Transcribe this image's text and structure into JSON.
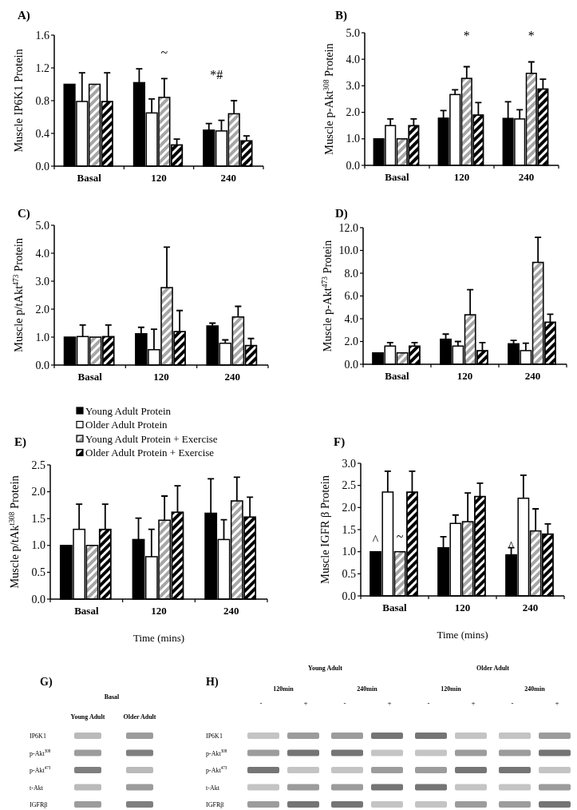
{
  "chart_data": [
    {
      "type": "bar",
      "title": "A)",
      "ylabel": "Muscle IP6K1 Protein",
      "categories": [
        "Basal",
        "120",
        "240"
      ],
      "ylim": [
        0,
        1.6
      ],
      "yticks": [
        {
          "value": 0,
          "label": "0.0"
        },
        {
          "value": 0.4,
          "label": "0.4"
        },
        {
          "value": 0.8,
          "label": "0.8"
        },
        {
          "value": 1.2,
          "label": "1.2"
        },
        {
          "value": 1.6,
          "label": "1.6"
        }
      ],
      "series": [
        {
          "color": "#000000",
          "values": [
            1.0,
            1.02,
            0.44
          ],
          "errors": [
            null,
            0.17,
            0.08
          ]
        },
        {
          "color": "#ffffff",
          "values": [
            0.79,
            0.65,
            0.43
          ],
          "errors": [
            0.35,
            0.17,
            0.13
          ]
        },
        {
          "color": "#a6a6a6",
          "values": [
            1.0,
            0.84,
            0.64
          ],
          "errors": [
            null,
            0.23,
            0.16
          ]
        },
        {
          "color": "#000000",
          "values": [
            0.79,
            0.26,
            0.31
          ],
          "errors": [
            0.35,
            0.07,
            0.06
          ]
        }
      ],
      "annotations": [
        "~",
        "*#"
      ]
    },
    {
      "type": "bar",
      "title": "B)",
      "ylabel": "Muscle p-Akt$^{308}$ Protein",
      "categories": [
        "Basal",
        "120",
        "240"
      ],
      "ylim": [
        0,
        5
      ],
      "yticks": [
        {
          "value": 0,
          "label": "0.0"
        },
        {
          "value": 1,
          "label": "1.0"
        },
        {
          "value": 2,
          "label": "2.0"
        },
        {
          "value": 3,
          "label": "3.0"
        },
        {
          "value": 4,
          "label": "4.0"
        },
        {
          "value": 5,
          "label": "5.0"
        }
      ],
      "series": [
        {
          "color": "#000000",
          "values": [
            1.0,
            1.78,
            1.77
          ],
          "errors": [
            null,
            0.29,
            0.63
          ]
        },
        {
          "color": "#ffffff",
          "values": [
            1.5,
            2.67,
            1.75
          ],
          "errors": [
            0.25,
            0.18,
            0.35
          ]
        },
        {
          "color": "#a6a6a6",
          "values": [
            1.0,
            3.28,
            3.47
          ],
          "errors": [
            null,
            0.44,
            0.43
          ]
        },
        {
          "color": "#000000",
          "values": [
            1.5,
            1.9,
            2.88
          ],
          "errors": [
            0.25,
            0.47,
            0.37
          ]
        }
      ],
      "annotations": [
        "*",
        "*"
      ]
    },
    {
      "type": "bar",
      "title": "C)",
      "ylabel": "Muscle p/tAkt$^{473}$ Protein",
      "categories": [
        "Basal",
        "120",
        "240"
      ],
      "ylim": [
        0,
        5
      ],
      "yticks": [
        {
          "value": 0,
          "label": "0.0"
        },
        {
          "value": 1,
          "label": "1.0"
        },
        {
          "value": 2,
          "label": "2.0"
        },
        {
          "value": 3,
          "label": "3.0"
        },
        {
          "value": 4,
          "label": "4.0"
        },
        {
          "value": 5,
          "label": "5.0"
        }
      ],
      "series": [
        {
          "color": "#000000",
          "values": [
            1.0,
            1.12,
            1.4
          ],
          "errors": [
            null,
            0.23,
            0.1
          ]
        },
        {
          "color": "#ffffff",
          "values": [
            1.02,
            0.55,
            0.78
          ],
          "errors": [
            0.41,
            0.73,
            0.12
          ]
        },
        {
          "color": "#a6a6a6",
          "values": [
            1.0,
            2.77,
            1.72
          ],
          "errors": [
            null,
            1.45,
            0.38
          ]
        },
        {
          "color": "#000000",
          "values": [
            1.02,
            1.2,
            0.7
          ],
          "errors": [
            0.41,
            0.75,
            0.25
          ]
        }
      ]
    },
    {
      "type": "bar",
      "title": "D)",
      "ylabel": "Muscle p-Akt$^{473}$ Protein",
      "categories": [
        "Basal",
        "120",
        "240"
      ],
      "ylim": [
        0,
        12
      ],
      "yticks": [
        {
          "value": 0,
          "label": "0.0"
        },
        {
          "value": 2,
          "label": "2.0"
        },
        {
          "value": 4,
          "label": "4.0"
        },
        {
          "value": 6,
          "label": "6.0"
        },
        {
          "value": 8,
          "label": "8.0"
        },
        {
          "value": 10,
          "label": "10.0"
        },
        {
          "value": 12,
          "label": "12.0"
        }
      ],
      "series": [
        {
          "color": "#000000",
          "values": [
            1.0,
            2.2,
            1.8
          ],
          "errors": [
            null,
            0.45,
            0.3
          ]
        },
        {
          "color": "#ffffff",
          "values": [
            1.6,
            1.6,
            1.2
          ],
          "errors": [
            0.3,
            0.4,
            0.65
          ]
        },
        {
          "color": "#a6a6a6",
          "values": [
            1.0,
            4.35,
            8.95
          ],
          "errors": [
            null,
            2.2,
            2.2
          ]
        },
        {
          "color": "#000000",
          "values": [
            1.6,
            1.2,
            3.7
          ],
          "errors": [
            0.3,
            0.7,
            0.7
          ]
        }
      ]
    },
    {
      "type": "bar",
      "title": "E)",
      "ylabel": "Muscle p/tAk$^{t308}$ Protein",
      "xlabel": "Time (mins)",
      "legend": "top",
      "categories": [
        "Basal",
        "120",
        "240"
      ],
      "ylim": [
        0,
        2.5
      ],
      "yticks": [
        {
          "value": 0,
          "label": "0.0"
        },
        {
          "value": 0.5,
          "label": "0.5"
        },
        {
          "value": 1,
          "label": "1.0"
        },
        {
          "value": 1.5,
          "label": "1.5"
        },
        {
          "value": 2,
          "label": "2.0"
        },
        {
          "value": 2.5,
          "label": "2.5"
        }
      ],
      "series": [
        {
          "name": "Young Adult Protein",
          "color": "#000000",
          "values": [
            1.0,
            1.11,
            1.6
          ],
          "errors": [
            null,
            0.4,
            0.64
          ]
        },
        {
          "name": "Older Adult Protein",
          "color": "#ffffff",
          "values": [
            1.3,
            0.79,
            1.11
          ],
          "errors": [
            0.47,
            0.51,
            0.37
          ]
        },
        {
          "name": "Young Adult Protein + Exercise",
          "color": "#a6a6a6",
          "values": [
            1.0,
            1.47,
            1.83
          ],
          "errors": [
            null,
            0.45,
            0.44
          ]
        },
        {
          "name": "Older Adult Protein + Exercise",
          "color": "#000000",
          "values": [
            1.3,
            1.62,
            1.53
          ],
          "errors": [
            0.47,
            0.49,
            0.37
          ]
        }
      ]
    },
    {
      "type": "bar",
      "title": "F)",
      "ylabel": "Muscle IGFR β Protein",
      "xlabel": "Time (mins)",
      "categories": [
        "Basal",
        "120",
        "240"
      ],
      "ylim": [
        0,
        3
      ],
      "yticks": [
        {
          "value": 0,
          "label": "0.0"
        },
        {
          "value": 0.5,
          "label": "0.5"
        },
        {
          "value": 1,
          "label": "1.0"
        },
        {
          "value": 1.5,
          "label": "1.5"
        },
        {
          "value": 2,
          "label": "2.0"
        },
        {
          "value": 2.5,
          "label": "2.5"
        },
        {
          "value": 3,
          "label": "3.0"
        }
      ],
      "series": [
        {
          "color": "#000000",
          "values": [
            1.0,
            1.09,
            0.93
          ],
          "errors": [
            null,
            0.25,
            0.16
          ]
        },
        {
          "color": "#ffffff",
          "values": [
            2.35,
            1.64,
            2.21
          ],
          "errors": [
            0.47,
            0.19,
            0.52
          ]
        },
        {
          "color": "#a6a6a6",
          "values": [
            1.0,
            1.68,
            1.47
          ],
          "errors": [
            null,
            0.65,
            0.5
          ]
        },
        {
          "color": "#000000",
          "values": [
            2.35,
            2.25,
            1.4
          ],
          "errors": [
            0.47,
            0.3,
            0.23
          ]
        }
      ],
      "annotations": [
        "^",
        "~",
        "^"
      ]
    },
    {
      "type": "other",
      "title": "G)",
      "subtitle": "Basal",
      "categories": [
        "Young Adult",
        "Older Adult"
      ],
      "y_categories": [
        "IP6K1",
        "p-Akt$^{308}$",
        "p-Akt$^{473}$",
        "t-Akt",
        "IGFRβ"
      ]
    },
    {
      "type": "other",
      "title": "H)",
      "categories": [
        "120min",
        "240min",
        "120min",
        "240min"
      ],
      "y_categories": [
        "IP6K1",
        "p-Akt$^{308}$",
        "p-Akt$^{473}$",
        "t-Akt",
        "IGFRβ"
      ],
      "annotations": [
        "Young Adult",
        "Older Adult",
        "-",
        "+",
        "-",
        "+",
        "-",
        "+",
        "-",
        "+"
      ]
    }
  ]
}
